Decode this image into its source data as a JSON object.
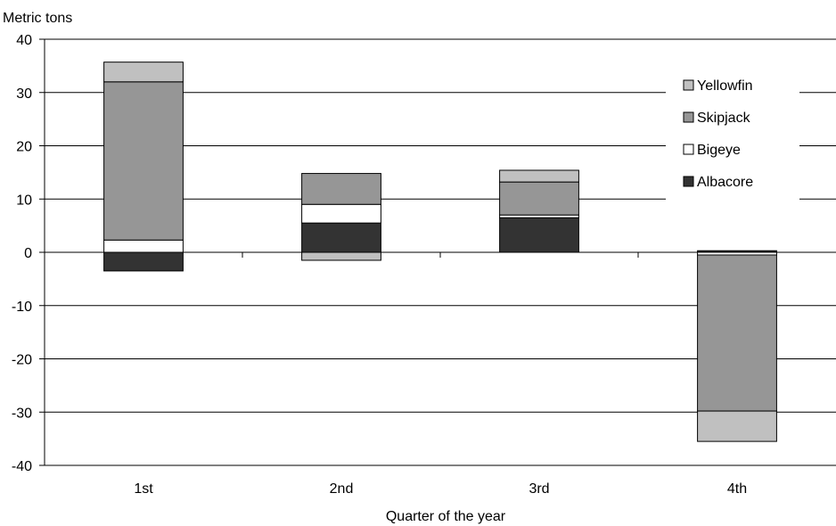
{
  "chart_data": {
    "type": "bar",
    "stacked": true,
    "xlabel": "Quarter of the year",
    "ylabel": "Metric tons",
    "ylim": [
      -40,
      40
    ],
    "y_ticks": [
      40,
      30,
      20,
      10,
      0,
      -10,
      -20,
      -30,
      -40
    ],
    "y_tick_labels": [
      "40",
      "30",
      "20",
      "10",
      "0",
      "-10",
      "-20",
      "-30",
      "-40"
    ],
    "grid": "horizontal",
    "legend_position": "top-right",
    "categories": [
      "1st",
      "2nd",
      "3rd",
      "4th"
    ],
    "series": [
      {
        "name": "Albacore",
        "color": "#333333",
        "values": [
          -3.5,
          5.5,
          6.5,
          0.3
        ]
      },
      {
        "name": "Bigeye",
        "color": "#ffffff",
        "values": [
          2.3,
          3.5,
          0.5,
          -0.5
        ]
      },
      {
        "name": "Skipjack",
        "color": "#969696",
        "values": [
          29.7,
          5.8,
          6.2,
          -29.3
        ]
      },
      {
        "name": "Yellowfin",
        "color": "#c0c0c0",
        "values": [
          3.7,
          -1.5,
          2.2,
          -5.7
        ]
      }
    ],
    "legend_order": [
      "Yellowfin",
      "Skipjack",
      "Bigeye",
      "Albacore"
    ]
  }
}
